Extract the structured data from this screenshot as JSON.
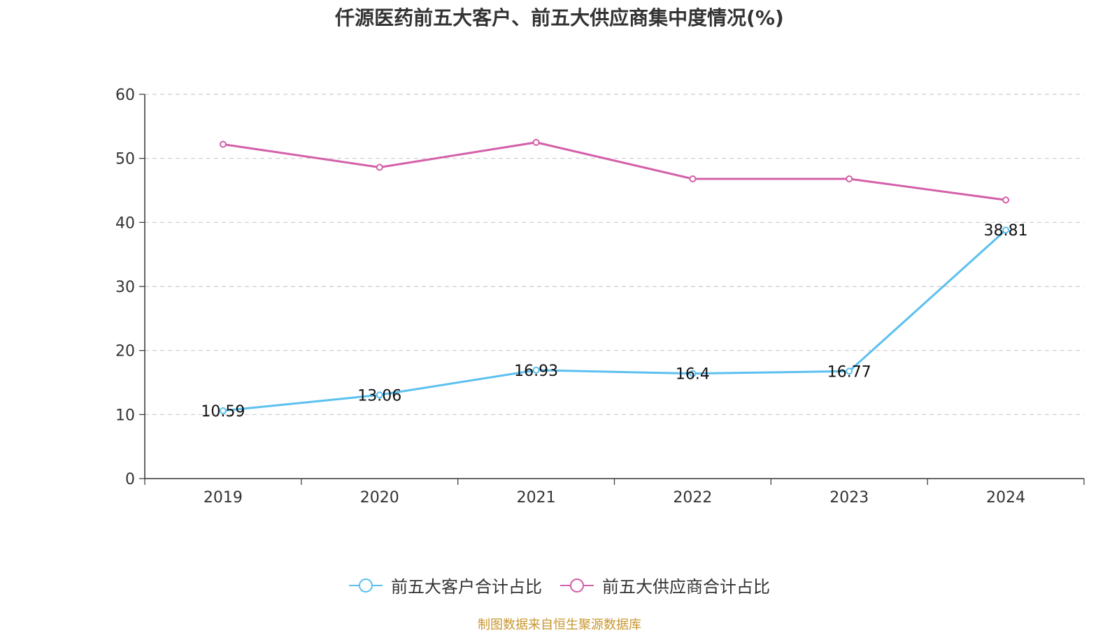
{
  "chart_data": {
    "type": "line",
    "title": "仟源医药前五大客户、前五大供应商集中度情况(%)",
    "categories": [
      "2019",
      "2020",
      "2021",
      "2022",
      "2023",
      "2024"
    ],
    "series": [
      {
        "name": "前五大客户合计占比",
        "color": "#5bc0ef",
        "values": [
          10.59,
          13.06,
          16.93,
          16.4,
          16.77,
          38.81
        ],
        "labels": [
          "10.59",
          "13.06",
          "16.93",
          "16.4",
          "16.77",
          "38.81"
        ]
      },
      {
        "name": "前五大供应商合计占比",
        "color": "#d360a9",
        "values": [
          52.2,
          48.6,
          52.5,
          46.8,
          46.8,
          43.5
        ]
      }
    ],
    "ylim": [
      0,
      60
    ],
    "yticks": [
      "0",
      "10",
      "20",
      "30",
      "40",
      "50",
      "60"
    ],
    "grid": true,
    "legend_position": "bottom"
  },
  "source": "制图数据来自恒生聚源数据库"
}
